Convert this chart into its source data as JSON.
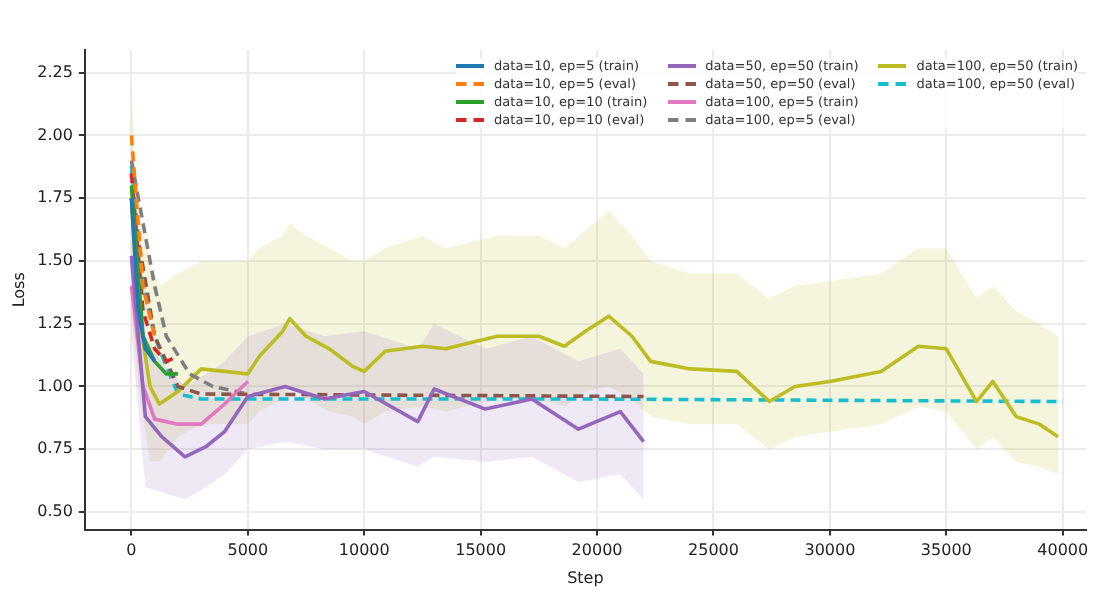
{
  "chart_data": {
    "type": "line",
    "xlabel": "Step",
    "ylabel": "Loss",
    "xlim": [
      -2000,
      41000
    ],
    "ylim": [
      0.43,
      2.34
    ],
    "xticks": [
      0,
      5000,
      10000,
      15000,
      20000,
      25000,
      30000,
      35000,
      40000
    ],
    "yticks": [
      {
        "value": 0.5,
        "label": "0.50"
      },
      0.75,
      {
        "value": 1.0,
        "label": "1.00"
      },
      1.25,
      {
        "value": 1.5,
        "label": "1.50"
      },
      1.75,
      {
        "value": 2.0,
        "label": "2.00"
      },
      2.25
    ],
    "grid": true,
    "legend": "top right",
    "marker": "none",
    "series": [
      {
        "name": "data=10, ep=5 (train)",
        "color": "#1f77b4",
        "line_style": "solid",
        "x": [
          0,
          300,
          600,
          1000
        ],
        "values": [
          1.75,
          1.3,
          1.15,
          1.1
        ]
      },
      {
        "name": "data=10, ep=5 (eval)",
        "color": "#ff7f0e",
        "line_style": "dashed",
        "x": [
          0,
          500,
          1000
        ],
        "values": [
          2.0,
          1.4,
          1.2
        ]
      },
      {
        "name": "data=10, ep=10 (train)",
        "color": "#2ca02c",
        "line_style": "solid",
        "x": [
          0,
          500,
          1000,
          1500,
          2000
        ],
        "values": [
          1.8,
          1.2,
          1.1,
          1.05,
          1.05
        ]
      },
      {
        "name": "data=10, ep=10 (eval)",
        "color": "#d62728",
        "line_style": "dashed",
        "x": [
          0,
          500,
          1000,
          1500,
          2000
        ],
        "values": [
          1.85,
          1.3,
          1.15,
          1.1,
          1.12
        ]
      },
      {
        "name": "data=50, ep=50 (train)",
        "color": "#9467bd",
        "line_style": "solid",
        "x": [
          0,
          600,
          1300,
          2300,
          3200,
          4000,
          5000,
          6600,
          8300,
          10000,
          12300,
          13000,
          15200,
          17200,
          19200,
          21000,
          22000
        ],
        "values": [
          1.52,
          0.88,
          0.8,
          0.72,
          0.76,
          0.82,
          0.96,
          1.0,
          0.95,
          0.98,
          0.86,
          0.99,
          0.91,
          0.95,
          0.83,
          0.9,
          0.78
        ],
        "lower": [
          1.2,
          0.6,
          0.58,
          0.55,
          0.6,
          0.65,
          0.75,
          0.78,
          0.75,
          0.75,
          0.68,
          0.72,
          0.7,
          0.72,
          0.62,
          0.65,
          0.55
        ],
        "upper": [
          2.0,
          1.2,
          1.1,
          1.0,
          1.05,
          1.1,
          1.2,
          1.25,
          1.2,
          1.22,
          1.15,
          1.25,
          1.15,
          1.2,
          1.1,
          1.15,
          1.05
        ]
      },
      {
        "name": "data=50, ep=50 (eval)",
        "color": "#8c564b",
        "line_style": "dashed",
        "x": [
          0,
          1000,
          2000,
          3000,
          22000
        ],
        "values": [
          1.75,
          1.2,
          1.0,
          0.97,
          0.96
        ]
      },
      {
        "name": "data=100, ep=5 (train)",
        "color": "#e377c2",
        "line_style": "solid",
        "x": [
          0,
          500,
          1000,
          2000,
          3000,
          4000,
          5000
        ],
        "values": [
          1.4,
          1.0,
          0.87,
          0.85,
          0.85,
          0.93,
          1.02
        ]
      },
      {
        "name": "data=100, ep=5 (eval)",
        "color": "#7f7f7f",
        "line_style": "dashed",
        "x": [
          0,
          1000,
          1500,
          2500,
          3500,
          5000
        ],
        "values": [
          1.9,
          1.4,
          1.2,
          1.05,
          1.0,
          0.97
        ]
      },
      {
        "name": "data=100, ep=50 (train)",
        "color": "#bcbd22",
        "line_style": "solid",
        "x": [
          0,
          300,
          800,
          1200,
          2000,
          3000,
          4000,
          5000,
          5500,
          6500,
          6800,
          7500,
          8500,
          9500,
          10000,
          10900,
          12500,
          13500,
          15700,
          17500,
          18600,
          19500,
          20500,
          21500,
          22300,
          24000,
          26000,
          27400,
          28500,
          30000,
          32200,
          33800,
          35000,
          36300,
          37000,
          38000,
          39000,
          39800
        ],
        "values": [
          1.75,
          1.3,
          1.0,
          0.93,
          0.98,
          1.07,
          1.06,
          1.05,
          1.12,
          1.22,
          1.27,
          1.2,
          1.15,
          1.08,
          1.06,
          1.14,
          1.16,
          1.15,
          1.2,
          1.2,
          1.16,
          1.22,
          1.28,
          1.2,
          1.1,
          1.07,
          1.06,
          0.94,
          1.0,
          1.02,
          1.06,
          1.16,
          1.15,
          0.94,
          1.02,
          0.88,
          0.85,
          0.8
        ],
        "lower": [
          1.3,
          1.0,
          0.7,
          0.7,
          0.8,
          0.85,
          0.85,
          0.85,
          0.9,
          0.95,
          1.0,
          0.95,
          0.9,
          0.88,
          0.85,
          0.9,
          0.92,
          0.9,
          0.95,
          0.95,
          0.92,
          0.98,
          1.0,
          0.95,
          0.88,
          0.85,
          0.85,
          0.75,
          0.8,
          0.82,
          0.85,
          0.92,
          0.9,
          0.75,
          0.8,
          0.7,
          0.68,
          0.65
        ],
        "upper": [
          2.2,
          1.7,
          1.5,
          1.4,
          1.45,
          1.5,
          1.5,
          1.5,
          1.55,
          1.6,
          1.65,
          1.6,
          1.55,
          1.5,
          1.5,
          1.55,
          1.6,
          1.55,
          1.6,
          1.6,
          1.55,
          1.62,
          1.7,
          1.6,
          1.5,
          1.45,
          1.45,
          1.35,
          1.4,
          1.42,
          1.45,
          1.55,
          1.55,
          1.35,
          1.4,
          1.3,
          1.25,
          1.2
        ]
      },
      {
        "name": "data=100, ep=50 (eval)",
        "color": "#17becf",
        "line_style": "dashed",
        "x": [
          0,
          500,
          1000,
          1500,
          2000,
          3000,
          20000,
          40000
        ],
        "values": [
          1.88,
          1.4,
          1.2,
          1.08,
          0.97,
          0.95,
          0.95,
          0.94
        ]
      }
    ]
  }
}
